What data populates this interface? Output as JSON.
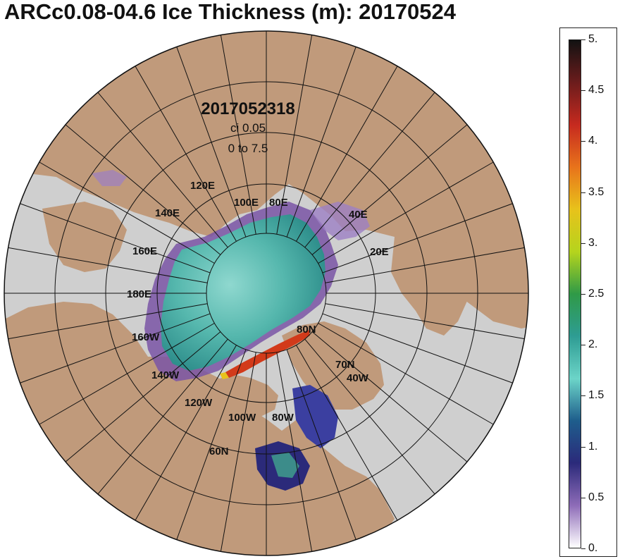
{
  "title": "ARCc0.08-04.6 Ice Thickness (m): 20170524",
  "map": {
    "timestamp": "2017052318",
    "contour_interval": "ci 0.05",
    "range": "0 to 7.5",
    "longitude_labels": [
      "120E",
      "140E",
      "160E",
      "180E",
      "160W",
      "140W",
      "120W",
      "100W",
      "80W",
      "100E",
      "80E",
      "40E",
      "20E",
      "40W"
    ],
    "latitude_labels": [
      "80N",
      "70N",
      "60N"
    ],
    "colors": {
      "ocean": "#cfcfcf",
      "land": "#c09a7b",
      "grid": "#111111",
      "ice_thin": "#7a55a6",
      "ice_mid": "#62c1b8",
      "ice_thick": "#d23a1a"
    }
  },
  "legend": {
    "labels": [
      "5.",
      "4.5",
      "4.",
      "3.5",
      "3.",
      "2.5",
      "2.",
      "1.5",
      "1.",
      "0.5",
      "0."
    ],
    "colormap_stops": [
      "#121212",
      "#6b1c1c",
      "#c62a1f",
      "#e8731b",
      "#e8c21b",
      "#b5d41d",
      "#2f9a47",
      "#2e9c93",
      "#6cd4c8",
      "#1e5d8c",
      "#2b2a7a",
      "#8e6cb8",
      "#ffffff"
    ]
  }
}
